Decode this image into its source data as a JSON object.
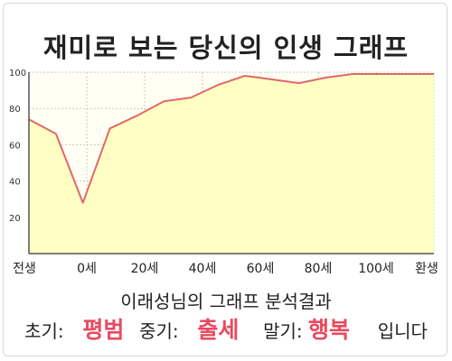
{
  "chart_data": {
    "type": "area",
    "title": "재미로 보는 당신의 인생 그래프",
    "x_labels": [
      "전생",
      "0세",
      "20세",
      "40세",
      "60세",
      "80세",
      "100세",
      "환생"
    ],
    "x": [
      0,
      1,
      2,
      3,
      4,
      5,
      6,
      7,
      8,
      9,
      10,
      11,
      12,
      13,
      14,
      15
    ],
    "values": [
      74,
      66,
      28,
      69,
      76,
      84,
      86,
      93,
      98,
      96,
      94,
      97,
      99,
      99,
      99,
      99
    ],
    "ylim": [
      0,
      100
    ],
    "yticks": [
      20,
      40,
      60,
      80,
      100
    ],
    "grid": true,
    "colors": {
      "fill": "#ffffc4",
      "line": "#e06868",
      "plot_background": "#fffff4",
      "grid": "#c8c8c8",
      "highlight_text": "#e84a5f"
    }
  },
  "result": {
    "subtitle": "이래성님의 그래프 분석결과",
    "stages": [
      {
        "label": "초기:",
        "value": "평범"
      },
      {
        "label": "중기:",
        "value": "출세"
      },
      {
        "label": "말기:",
        "value": "행복"
      }
    ],
    "suffix": "입니다"
  }
}
